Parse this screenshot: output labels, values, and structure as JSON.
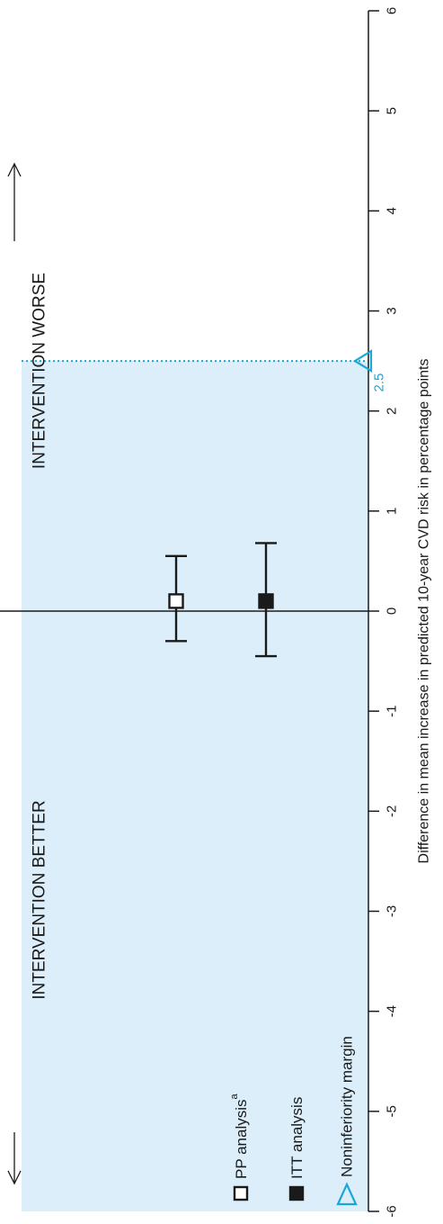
{
  "chart_data": {
    "type": "forest",
    "orientation": "rotated-90-ccw",
    "xlabel": "Difference in mean increase in predicted 10-year CVD risk in percentage points",
    "xlim": [
      -6,
      6
    ],
    "x_ticks": [
      {
        "value": -6,
        "label": "-6"
      },
      {
        "value": -5,
        "label": "-5"
      },
      {
        "value": -4,
        "label": "-4"
      },
      {
        "value": -3,
        "label": "-3"
      },
      {
        "value": -2,
        "label": "-2"
      },
      {
        "value": -1,
        "label": "-1"
      },
      {
        "value": 0,
        "label": "0"
      },
      {
        "value": 1,
        "label": "1"
      },
      {
        "value": 2,
        "label": "2"
      },
      {
        "value": 3,
        "label": "3"
      },
      {
        "value": 4,
        "label": "4"
      },
      {
        "value": 5,
        "label": "5"
      },
      {
        "value": 6,
        "label": "6"
      }
    ],
    "annotations": {
      "better": "INTERVENTION BETTER",
      "worse": "INTERVENTION WORSE"
    },
    "margin": {
      "value": 2.5,
      "label": "2.5",
      "name": "Noninferiority margin"
    },
    "series": [
      {
        "name": "PP analysis",
        "superscript": "a",
        "marker": "open-square",
        "estimate": 0.1,
        "ci_low": -0.3,
        "ci_high": 0.55
      },
      {
        "name": "ITT analysis",
        "superscript": "",
        "marker": "filled-square",
        "estimate": 0.1,
        "ci_low": -0.45,
        "ci_high": 0.68
      }
    ],
    "colors": {
      "shade": "#dbeef9",
      "margin": "#1aa7d8",
      "ink": "#1a1a1a"
    },
    "legend_position": "bottom-left"
  }
}
